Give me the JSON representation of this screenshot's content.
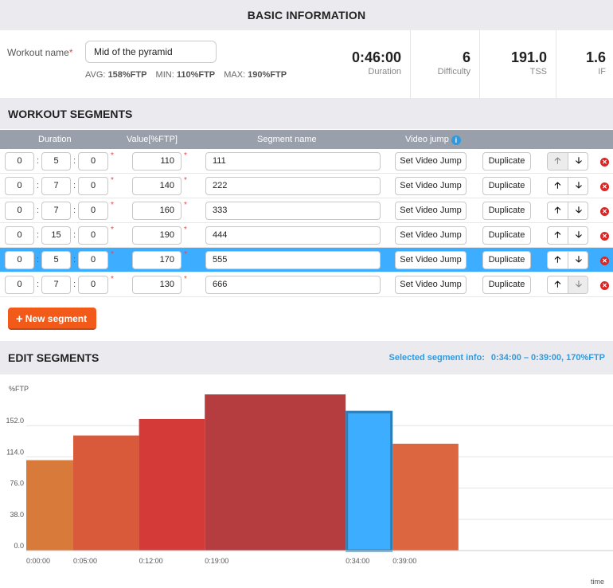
{
  "basic": {
    "title": "BASIC INFORMATION",
    "workout_label": "Workout name",
    "required_mark": "*",
    "workout_name": "Mid of the pyramid",
    "avg_label": "AVG:",
    "avg_value": "158%FTP",
    "min_label": "MIN:",
    "min_value": "110%FTP",
    "max_label": "MAX:",
    "max_value": "190%FTP",
    "metrics": [
      {
        "value": "0:46:00",
        "label": "Duration"
      },
      {
        "value": "6",
        "label": "Difficulty"
      },
      {
        "value": "191.0",
        "label": "TSS"
      },
      {
        "value": "1.6",
        "label": "IF"
      }
    ]
  },
  "segments": {
    "title": "WORKOUT SEGMENTS",
    "headers": {
      "duration": "Duration",
      "value": "Value[%FTP]",
      "name": "Segment name",
      "video": "Video jump"
    },
    "video_btn": "Set Video Jump",
    "dup_btn": "Duplicate",
    "colon": ":",
    "star": "*",
    "up_glyph": "🡡",
    "down_glyph": "🡣",
    "del_glyph": "✕",
    "rows": [
      {
        "h": "0",
        "m": "5",
        "s": "0",
        "value": "110",
        "name": "111",
        "selected": false,
        "up_disabled": true,
        "down_disabled": false
      },
      {
        "h": "0",
        "m": "7",
        "s": "0",
        "value": "140",
        "name": "222",
        "selected": false,
        "up_disabled": false,
        "down_disabled": false
      },
      {
        "h": "0",
        "m": "7",
        "s": "0",
        "value": "160",
        "name": "333",
        "selected": false,
        "up_disabled": false,
        "down_disabled": false
      },
      {
        "h": "0",
        "m": "15",
        "s": "0",
        "value": "190",
        "name": "444",
        "selected": false,
        "up_disabled": false,
        "down_disabled": false
      },
      {
        "h": "0",
        "m": "5",
        "s": "0",
        "value": "170",
        "name": "555",
        "selected": true,
        "up_disabled": false,
        "down_disabled": false
      },
      {
        "h": "0",
        "m": "7",
        "s": "0",
        "value": "130",
        "name": "666",
        "selected": false,
        "up_disabled": false,
        "down_disabled": true
      }
    ],
    "new_segment_label": "New segment"
  },
  "edit": {
    "title": "EDIT SEGMENTS",
    "selected_info_label": "Selected segment info:",
    "selected_info_value": "0:34:00 – 0:39:00, 170%FTP"
  },
  "colors": {
    "accent": "#3daeff",
    "new_segment": "#f25a1a",
    "info": "#2f9ae0"
  },
  "chart_data": {
    "type": "bar",
    "ylabel": "%FTP",
    "xlabel": "time",
    "y_ticks": [
      "152.0",
      "114.0",
      "76.0",
      "38.0",
      "0.0"
    ],
    "y_tick_values": [
      152,
      114,
      76,
      38,
      0
    ],
    "ylim": [
      0,
      190
    ],
    "xlim_minutes": [
      0,
      72
    ],
    "x_tick_labels": [
      "0:00:00",
      "0:05:00",
      "0:12:00",
      "0:19:00",
      "0:34:00",
      "0:39:00"
    ],
    "segments": [
      {
        "start": "0:00:00",
        "start_min": 0,
        "duration_min": 5,
        "value": 110,
        "color": "#d87a3a",
        "selected": false
      },
      {
        "start": "0:05:00",
        "start_min": 5,
        "duration_min": 7,
        "value": 140,
        "color": "#d95a3a",
        "selected": false
      },
      {
        "start": "0:12:00",
        "start_min": 12,
        "duration_min": 7,
        "value": 160,
        "color": "#d33a38",
        "selected": false
      },
      {
        "start": "0:19:00",
        "start_min": 19,
        "duration_min": 15,
        "value": 190,
        "color": "#b53d40",
        "selected": false
      },
      {
        "start": "0:34:00",
        "start_min": 34,
        "duration_min": 5,
        "value": 170,
        "color": "#3daeff",
        "selected": true
      },
      {
        "start": "0:39:00",
        "start_min": 39,
        "duration_min": 7,
        "value": 130,
        "color": "#db6640",
        "selected": false
      }
    ],
    "grid": true
  }
}
